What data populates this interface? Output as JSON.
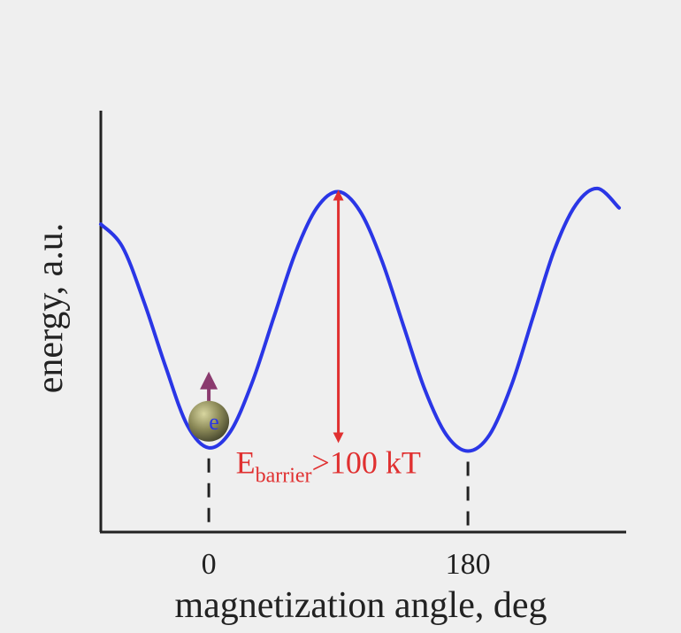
{
  "chart_data": {
    "type": "line",
    "title": "",
    "xlabel": "magnetization angle, deg",
    "ylabel": "energy, a.u.",
    "x_ticks": [
      "0",
      "180"
    ],
    "x_tick_values": [
      0,
      180
    ],
    "xlim": [
      -75,
      285
    ],
    "ylim": [
      0,
      1.3
    ],
    "grid": false,
    "legend": "none",
    "series": [
      {
        "color": "#2a36e6",
        "x": [
          -75,
          -60,
          -45,
          -30,
          -15,
          0,
          15,
          30,
          45,
          60,
          75,
          90,
          105,
          120,
          135,
          150,
          165,
          180,
          195,
          210,
          225,
          240,
          255,
          270,
          285
        ],
        "y": [
          0.95,
          0.88,
          0.71,
          0.51,
          0.33,
          0.26,
          0.31,
          0.46,
          0.66,
          0.86,
          1.0,
          1.05,
          0.99,
          0.84,
          0.64,
          0.44,
          0.3,
          0.25,
          0.3,
          0.45,
          0.66,
          0.87,
          1.01,
          1.06,
          1.0
        ]
      }
    ],
    "annotations": {
      "barrier_main": "E",
      "barrier_sub": "barrier",
      "barrier_rest": ">100 kT",
      "barrier_color": "#e03030",
      "barrier_x": 90,
      "barrier_y_from": 1.05,
      "barrier_y_to": 0.28,
      "dashed_markers_x": [
        0,
        180
      ],
      "particle_x": 0,
      "particle_label": "e",
      "particle_color": "#8c8a58",
      "spin_arrow_color": "#8a3a6e"
    }
  }
}
